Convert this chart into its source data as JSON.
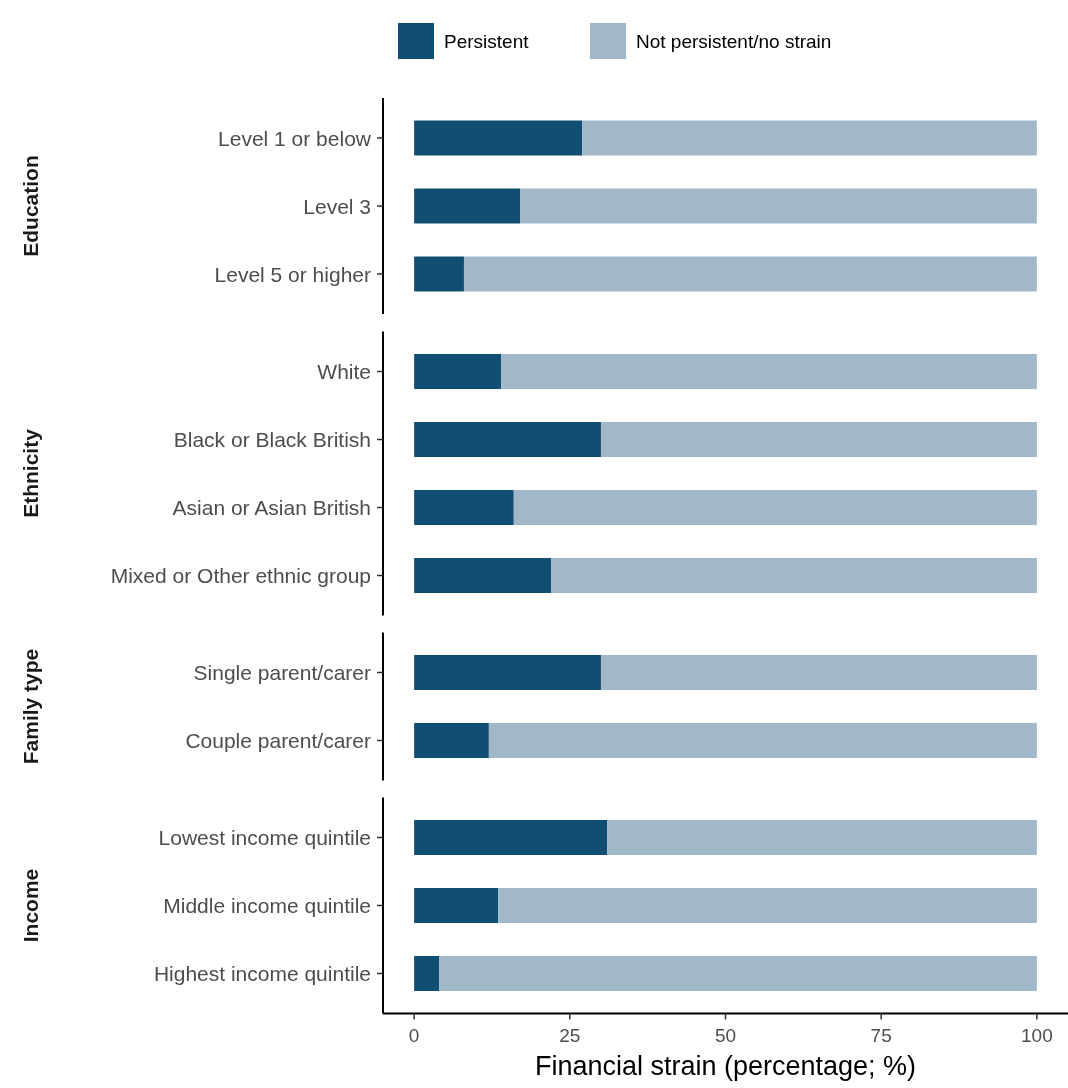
{
  "chart_data": [
    {
      "type": "bar",
      "orientation": "horizontal",
      "stacked": true,
      "ylabel": "Education",
      "categories": [
        "Level 1 or below",
        "Level 3",
        "Level 5 or higher"
      ],
      "legend": "top",
      "tick_labels": "y",
      "xlim": [
        -5,
        105
      ],
      "xticks": [
        0,
        25,
        50,
        75,
        100
      ],
      "series": [
        {
          "name": "Persistent",
          "color": "#114e74",
          "values": [
            27,
            17,
            8
          ]
        },
        {
          "name": "Not persistent/no strain",
          "color": "#a1b8c8",
          "values": [
            73,
            83,
            92
          ]
        }
      ]
    },
    {
      "type": "bar",
      "orientation": "horizontal",
      "stacked": true,
      "ylabel": "Ethnicity",
      "categories": [
        "White",
        "Black or Black British",
        "Asian or Asian British",
        "Mixed or Other ethnic group"
      ],
      "tick_labels": "y",
      "xlim": [
        -5,
        105
      ],
      "xticks": [
        0,
        25,
        50,
        75,
        100
      ],
      "series": [
        {
          "color": "#114e74",
          "values": [
            14,
            30,
            16,
            22
          ]
        },
        {
          "color": "#a1b8c8",
          "values": [
            86,
            70,
            84,
            78
          ]
        }
      ]
    },
    {
      "type": "bar",
      "orientation": "horizontal",
      "stacked": true,
      "ylabel": "Family type",
      "categories": [
        "Single parent/carer",
        "Couple parent/carer"
      ],
      "tick_labels": "y",
      "xlim": [
        -5,
        105
      ],
      "xticks": [
        0,
        25,
        50,
        75,
        100
      ],
      "series": [
        {
          "color": "#114e74",
          "values": [
            30,
            12
          ]
        },
        {
          "color": "#a1b8c8",
          "values": [
            70,
            88
          ]
        }
      ]
    },
    {
      "type": "bar",
      "orientation": "horizontal",
      "stacked": true,
      "ylabel": "Income",
      "categories": [
        "Lowest income quintile",
        "Middle income quintile",
        "Highest income quintile"
      ],
      "xlabel": "Financial strain (percentage; %)",
      "xlim": [
        -5,
        105
      ],
      "xticks": [
        0,
        25,
        50,
        75,
        100
      ],
      "series": [
        {
          "color": "#114e74",
          "values": [
            31,
            13.5,
            4
          ]
        },
        {
          "color": "#a1b8c8",
          "values": [
            69,
            86.5,
            96
          ]
        }
      ]
    }
  ]
}
